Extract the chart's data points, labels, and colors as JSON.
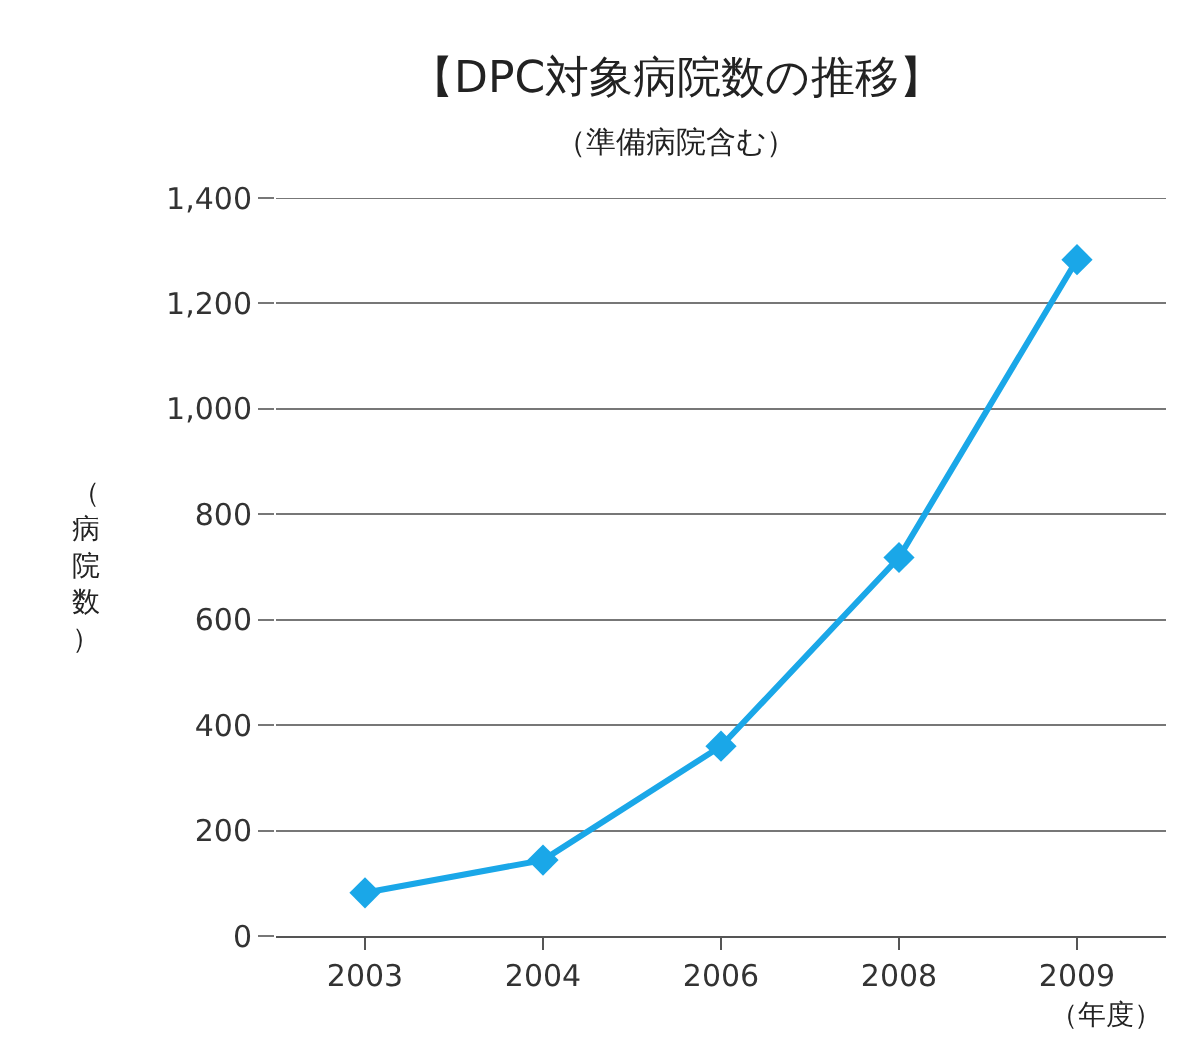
{
  "chart_data": {
    "type": "line",
    "title": "【DPC対象病院数の推移】",
    "subtitle": "（準備病院含む）",
    "ylabel": "（病院数）",
    "xlabel": "（年度）",
    "categories": [
      "2003",
      "2004",
      "2006",
      "2008",
      "2009"
    ],
    "series": [
      {
        "color": "#1aa7e8",
        "values": [
          82,
          144,
          360,
          718,
          1283
        ]
      }
    ],
    "ylim": [
      0,
      1400
    ],
    "yticks": [
      0,
      200,
      400,
      600,
      800,
      {
        "value": 1000,
        "label": "1,000"
      },
      {
        "value": 1200,
        "label": "1,200"
      },
      {
        "value": 1400,
        "label": "1,400"
      }
    ],
    "grid": "y",
    "marker": "diamond",
    "line_style": "solid"
  }
}
